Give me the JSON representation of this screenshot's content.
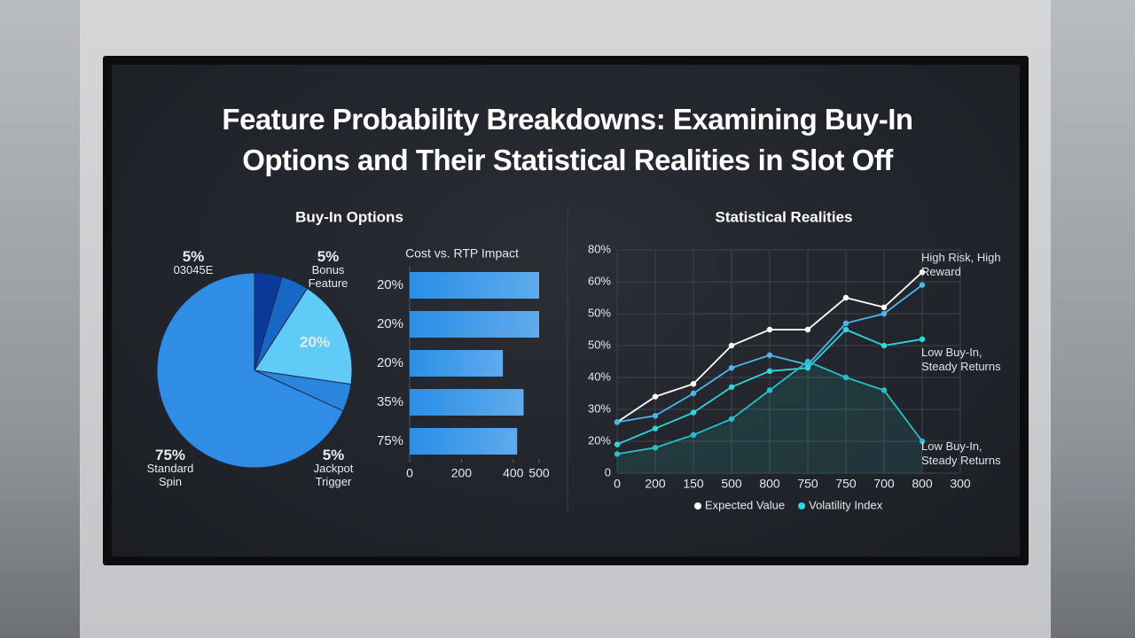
{
  "title": "Feature Probability Breakdowns: Examining Buy-In Options and Their Statistical Realities in Slot Off",
  "chart_data": [
    {
      "type": "pie",
      "title": "Buy-In Options",
      "categories": [
        "03045E",
        "Bonus Feature",
        null,
        "Jackpot Trigger",
        "Standard Spin"
      ],
      "values": [
        5,
        5,
        20,
        5,
        75
      ],
      "value_labels": [
        "5%",
        "5%",
        "20%",
        "5%",
        "75%"
      ],
      "colors": [
        "#0b3a9a",
        "#1768c4",
        "#5fcbf6",
        "#2a86dc",
        "#2f8de6"
      ]
    },
    {
      "type": "bar",
      "orientation": "horizontal",
      "title": "Cost vs. RTP Impact",
      "categories": [
        "20%",
        "20%",
        "20%",
        "35%",
        "75%"
      ],
      "values": [
        500,
        500,
        360,
        440,
        415
      ],
      "color": "#2a8fe6",
      "xlim": [
        0,
        500
      ],
      "xticks": [
        0,
        200,
        400,
        500
      ]
    },
    {
      "type": "line",
      "title": "Statistical Realities",
      "categories": [
        "0",
        "200",
        "150",
        "500",
        "800",
        "750",
        "750",
        "700",
        "800",
        "300"
      ],
      "y_tick_labels": [
        "0",
        "20%",
        "30%",
        "40%",
        "50%",
        "50%",
        "60%",
        "80%"
      ],
      "ylim": [
        0,
        7
      ],
      "grid": true,
      "series": [
        {
          "name": "Expected Value",
          "color": "#ffffff",
          "values": [
            1.6,
            2.4,
            2.8,
            4.0,
            4.5,
            4.5,
            5.5,
            5.2,
            6.3,
            null
          ]
        },
        {
          "name": null,
          "color": "#4fb3f0",
          "values": [
            1.6,
            1.8,
            2.5,
            3.3,
            3.7,
            3.4,
            4.7,
            5.0,
            5.9,
            null
          ]
        },
        {
          "name": "Volatility Index",
          "color": "#2fd6e0",
          "values": [
            0.9,
            1.4,
            1.9,
            2.7,
            3.2,
            3.3,
            4.5,
            4.0,
            4.2,
            null
          ]
        },
        {
          "name": null,
          "color": "#24c2c8",
          "values": [
            0.6,
            0.8,
            1.2,
            1.7,
            2.6,
            3.5,
            3.0,
            2.6,
            1.0,
            null
          ]
        }
      ],
      "annotations": [
        "High Risk, High Reward",
        "Low Buy-In, Steady Returns",
        "Low Buy-In, Steady Returns"
      ]
    }
  ]
}
